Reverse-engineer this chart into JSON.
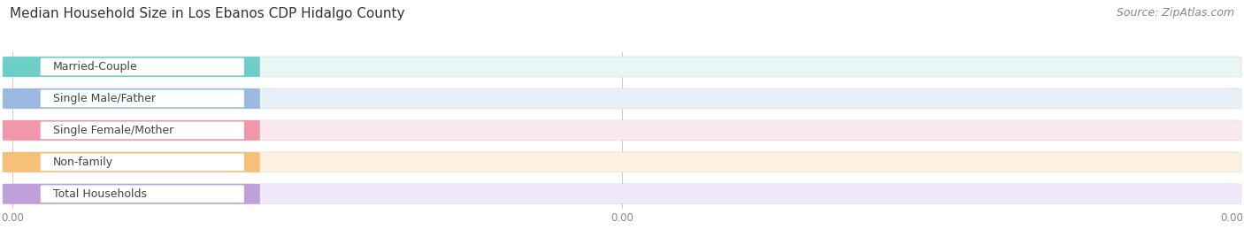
{
  "title": "Median Household Size in Los Ebanos CDP Hidalgo County",
  "source": "Source: ZipAtlas.com",
  "categories": [
    "Married-Couple",
    "Single Male/Father",
    "Single Female/Mother",
    "Non-family",
    "Total Households"
  ],
  "values": [
    0.0,
    0.0,
    0.0,
    0.0,
    0.0
  ],
  "bar_colors": [
    "#6dcec8",
    "#9ab8e0",
    "#f098aa",
    "#f5c078",
    "#c0a0d8"
  ],
  "bar_bg_colors": [
    "#e8f6f5",
    "#e8f0f8",
    "#faeaee",
    "#fdf0e0",
    "#f0e8f8"
  ],
  "background_color": "#f5f5f5",
  "title_fontsize": 11,
  "label_fontsize": 9,
  "value_fontsize": 9,
  "source_fontsize": 9
}
